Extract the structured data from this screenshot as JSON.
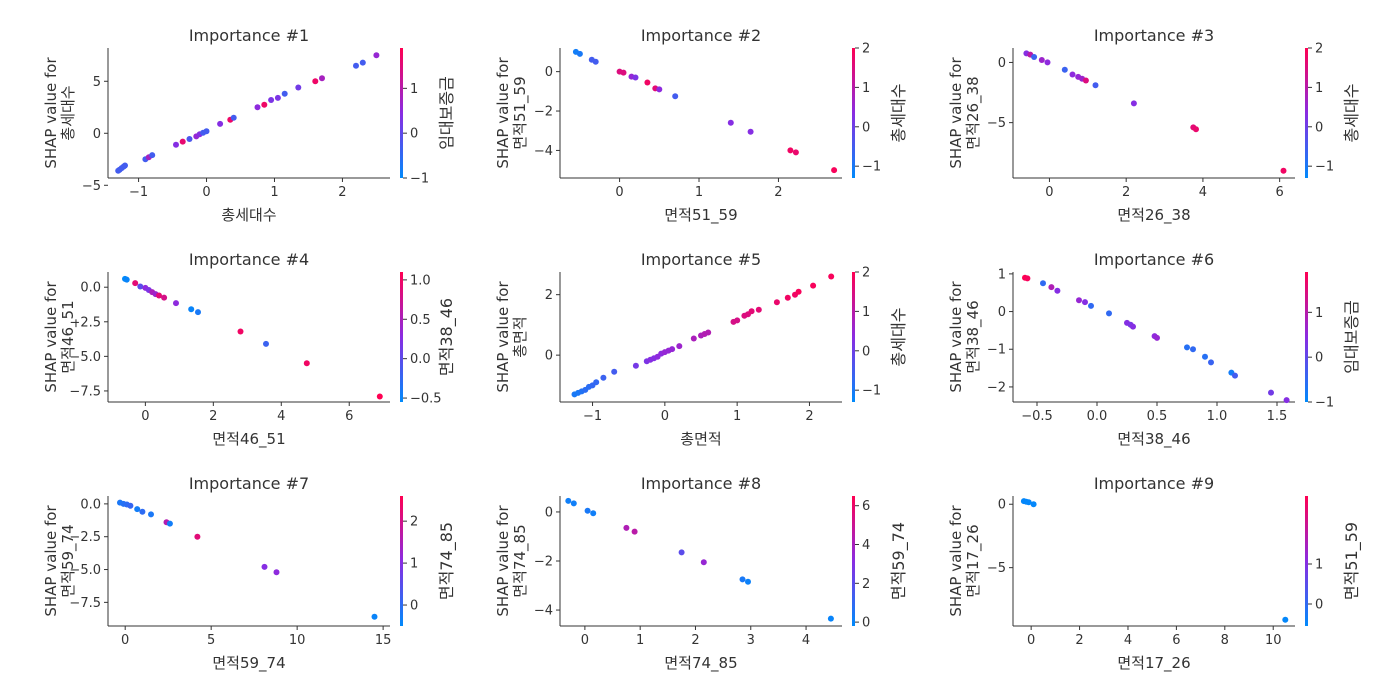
{
  "figure": {
    "colorscale": [
      "#008afb",
      "#8a2be2",
      "#ff0052"
    ]
  },
  "chart_data": [
    {
      "type": "scatter",
      "title": "Importance #1",
      "xlabel": "총세대수",
      "ylabel": [
        "SHAP value for",
        "총세대수"
      ],
      "xlim": [
        -1.45,
        2.7
      ],
      "ylim": [
        -4.3,
        8.2
      ],
      "xticks": [
        -1,
        0,
        1,
        2
      ],
      "yticks": [
        -5,
        0,
        5
      ],
      "colorbar": {
        "label": "임대보증금",
        "min": -1,
        "max": 1.9,
        "ticks": [
          -1,
          0,
          1
        ]
      },
      "points": [
        [
          -1.3,
          -3.6,
          -0.3
        ],
        [
          -1.28,
          -3.5,
          -0.3
        ],
        [
          -1.25,
          -3.35,
          -0.3
        ],
        [
          -1.22,
          -3.2,
          -0.3
        ],
        [
          -1.2,
          -3.1,
          -0.3
        ],
        [
          -0.9,
          -2.5,
          -0.3
        ],
        [
          -0.85,
          -2.3,
          0.8
        ],
        [
          -0.8,
          -2.1,
          -0.3
        ],
        [
          -0.45,
          -1.1,
          0.4
        ],
        [
          -0.35,
          -0.8,
          1.6
        ],
        [
          -0.25,
          -0.55,
          -0.2
        ],
        [
          -0.15,
          -0.3,
          0.6
        ],
        [
          -0.1,
          -0.1,
          0.4
        ],
        [
          -0.05,
          0.05,
          -0.3
        ],
        [
          0.0,
          0.2,
          -0.3
        ],
        [
          0.2,
          0.9,
          0.4
        ],
        [
          0.35,
          1.3,
          1.7
        ],
        [
          0.4,
          1.5,
          -0.3
        ],
        [
          0.75,
          2.5,
          0.5
        ],
        [
          0.85,
          2.75,
          1.7
        ],
        [
          0.95,
          3.2,
          0.3
        ],
        [
          1.05,
          3.4,
          0.3
        ],
        [
          1.15,
          3.8,
          -0.3
        ],
        [
          1.35,
          4.4,
          0.2
        ],
        [
          1.6,
          5.0,
          1.7
        ],
        [
          1.7,
          5.3,
          0.8
        ],
        [
          2.2,
          6.5,
          -0.3
        ],
        [
          2.3,
          6.8,
          -0.3
        ],
        [
          2.5,
          7.5,
          0.6
        ]
      ]
    },
    {
      "type": "scatter",
      "title": "Importance #2",
      "xlabel": "면적51_59",
      "ylabel": [
        "SHAP value for",
        "면적51_59"
      ],
      "xlim": [
        -0.75,
        2.8
      ],
      "ylim": [
        -5.4,
        1.2
      ],
      "xticks": [
        0,
        1,
        2
      ],
      "yticks": [
        -4,
        -2,
        0
      ],
      "colorbar": {
        "label": "총세대수",
        "min": -1.3,
        "max": 2,
        "ticks": [
          -1,
          0,
          1,
          2
        ]
      },
      "points": [
        [
          -0.55,
          1.0,
          -1.1
        ],
        [
          -0.5,
          0.9,
          -1.0
        ],
        [
          -0.35,
          0.6,
          -0.5
        ],
        [
          -0.3,
          0.5,
          -0.5
        ],
        [
          0.0,
          0.0,
          1.5
        ],
        [
          0.05,
          -0.05,
          1.5
        ],
        [
          0.15,
          -0.25,
          0.5
        ],
        [
          0.2,
          -0.3,
          0.2
        ],
        [
          0.35,
          -0.55,
          1.8
        ],
        [
          0.45,
          -0.85,
          1.6
        ],
        [
          0.5,
          -0.9,
          0.4
        ],
        [
          0.7,
          -1.25,
          -0.5
        ],
        [
          1.4,
          -2.6,
          0.3
        ],
        [
          1.65,
          -3.05,
          0.3
        ],
        [
          2.15,
          -4.0,
          1.8
        ],
        [
          2.22,
          -4.1,
          1.7
        ],
        [
          2.7,
          -5.0,
          1.9
        ]
      ]
    },
    {
      "type": "scatter",
      "title": "Importance #3",
      "xlabel": "면적26_38",
      "ylabel": [
        "SHAP value for",
        "면적26_38"
      ],
      "xlim": [
        -0.95,
        6.4
      ],
      "ylim": [
        -9.6,
        1.2
      ],
      "xticks": [
        0,
        2,
        4,
        6
      ],
      "yticks": [
        -5,
        0
      ],
      "colorbar": {
        "label": "총세대수",
        "min": -1.3,
        "max": 2,
        "ticks": [
          -1,
          0,
          1,
          2
        ]
      },
      "points": [
        [
          -0.6,
          0.75,
          0.3
        ],
        [
          -0.5,
          0.65,
          1.0
        ],
        [
          -0.4,
          0.45,
          -0.6
        ],
        [
          -0.2,
          0.2,
          0.6
        ],
        [
          -0.05,
          0.0,
          0.4
        ],
        [
          0.4,
          -0.6,
          -0.6
        ],
        [
          0.6,
          -1.0,
          0.4
        ],
        [
          0.75,
          -1.2,
          0.5
        ],
        [
          0.85,
          -1.35,
          0.6
        ],
        [
          0.95,
          -1.5,
          1.5
        ],
        [
          1.2,
          -1.9,
          -0.5
        ],
        [
          2.2,
          -3.4,
          0.3
        ],
        [
          3.75,
          -5.4,
          1.6
        ],
        [
          3.82,
          -5.55,
          1.7
        ],
        [
          6.1,
          -9.0,
          1.8
        ]
      ]
    },
    {
      "type": "scatter",
      "title": "Importance #4",
      "xlabel": "면적46_51",
      "ylabel": [
        "SHAP value for",
        "면적46_51"
      ],
      "xlim": [
        -1.1,
        7.2
      ],
      "ylim": [
        -8.3,
        1.1
      ],
      "xticks": [
        0,
        2,
        4,
        6
      ],
      "yticks": [
        -7.5,
        -5.0,
        -2.5,
        0.0
      ],
      "ytick_labels": [
        "−7.5",
        "−5.0",
        "−2.5",
        "0.0"
      ],
      "colorbar": {
        "label": "면적38_46",
        "min": -0.55,
        "max": 1.1,
        "ticks": [
          -0.5,
          0.0,
          0.5,
          1.0
        ],
        "tick_labels": [
          "−0.5",
          "0.0",
          "0.5",
          "1.0"
        ]
      },
      "points": [
        [
          -0.6,
          0.6,
          -0.55
        ],
        [
          -0.55,
          0.55,
          -0.5
        ],
        [
          -0.3,
          0.3,
          0.9
        ],
        [
          -0.15,
          0.05,
          0.0
        ],
        [
          0.0,
          -0.05,
          0.3
        ],
        [
          0.1,
          -0.2,
          0.2
        ],
        [
          0.2,
          -0.35,
          0.5
        ],
        [
          0.3,
          -0.5,
          0.4
        ],
        [
          0.4,
          -0.6,
          0.9
        ],
        [
          0.55,
          -0.75,
          0.8
        ],
        [
          0.9,
          -1.15,
          0.3
        ],
        [
          1.35,
          -1.6,
          -0.5
        ],
        [
          1.55,
          -1.8,
          -0.4
        ],
        [
          2.8,
          -3.2,
          1.0
        ],
        [
          3.55,
          -4.1,
          -0.2
        ],
        [
          4.75,
          -5.5,
          1.0
        ],
        [
          6.9,
          -7.9,
          1.1
        ]
      ]
    },
    {
      "type": "scatter",
      "title": "Importance #5",
      "xlabel": "총면적",
      "ylabel": [
        "SHAP value for",
        "총면적"
      ],
      "xlim": [
        -1.45,
        2.45
      ],
      "ylim": [
        -1.55,
        2.75
      ],
      "xticks": [
        -1,
        0,
        1,
        2
      ],
      "yticks": [
        0,
        2
      ],
      "colorbar": {
        "label": "총세대수",
        "min": -1.3,
        "max": 2,
        "ticks": [
          -1,
          0,
          1,
          2
        ]
      },
      "points": [
        [
          -1.25,
          -1.3,
          -1.0
        ],
        [
          -1.2,
          -1.25,
          -1.0
        ],
        [
          -1.15,
          -1.2,
          -0.9
        ],
        [
          -1.1,
          -1.15,
          -0.8
        ],
        [
          -1.05,
          -1.05,
          -0.8
        ],
        [
          -1.0,
          -1.0,
          -0.7
        ],
        [
          -0.95,
          -0.9,
          -0.7
        ],
        [
          -0.85,
          -0.75,
          -0.6
        ],
        [
          -0.7,
          -0.55,
          -0.5
        ],
        [
          -0.4,
          -0.35,
          0.1
        ],
        [
          -0.25,
          -0.2,
          0.2
        ],
        [
          -0.2,
          -0.15,
          0.3
        ],
        [
          -0.15,
          -0.1,
          0.3
        ],
        [
          -0.1,
          -0.05,
          0.4
        ],
        [
          -0.05,
          0.05,
          0.4
        ],
        [
          0.0,
          0.1,
          0.5
        ],
        [
          0.05,
          0.15,
          0.5
        ],
        [
          0.1,
          0.2,
          0.5
        ],
        [
          0.2,
          0.3,
          0.6
        ],
        [
          0.4,
          0.55,
          0.8
        ],
        [
          0.5,
          0.65,
          0.8
        ],
        [
          0.55,
          0.7,
          0.9
        ],
        [
          0.6,
          0.75,
          0.9
        ],
        [
          0.95,
          1.1,
          1.4
        ],
        [
          1.0,
          1.15,
          1.4
        ],
        [
          1.1,
          1.3,
          1.5
        ],
        [
          1.15,
          1.35,
          1.5
        ],
        [
          1.2,
          1.45,
          1.6
        ],
        [
          1.3,
          1.5,
          1.6
        ],
        [
          1.55,
          1.75,
          1.7
        ],
        [
          1.7,
          1.9,
          1.8
        ],
        [
          1.8,
          2.0,
          1.8
        ],
        [
          1.85,
          2.1,
          1.9
        ],
        [
          2.05,
          2.3,
          1.9
        ],
        [
          2.3,
          2.6,
          1.9
        ]
      ]
    },
    {
      "type": "scatter",
      "title": "Importance #6",
      "xlabel": "면적38_46",
      "ylabel": [
        "SHAP value for",
        "면적38_46"
      ],
      "xlim": [
        -0.7,
        1.65
      ],
      "ylim": [
        -2.4,
        1.05
      ],
      "xticks": [
        -0.5,
        0.0,
        0.5,
        1.0,
        1.5
      ],
      "yticks": [
        -2,
        -1,
        0,
        1
      ],
      "xtick_labels": [
        "−0.5",
        "0.0",
        "0.5",
        "1.0",
        "1.5"
      ],
      "colorbar": {
        "label": "임대보증금",
        "min": -1,
        "max": 1.9,
        "ticks": [
          -1,
          0,
          1
        ]
      },
      "points": [
        [
          -0.6,
          0.9,
          1.9
        ],
        [
          -0.58,
          0.88,
          1.8
        ],
        [
          -0.45,
          0.75,
          -0.5
        ],
        [
          -0.38,
          0.65,
          0.9
        ],
        [
          -0.33,
          0.55,
          0.4
        ],
        [
          -0.15,
          0.3,
          0.6
        ],
        [
          -0.1,
          0.25,
          0.4
        ],
        [
          -0.05,
          0.15,
          -0.5
        ],
        [
          0.1,
          -0.05,
          -0.5
        ],
        [
          0.25,
          -0.3,
          0.4
        ],
        [
          0.28,
          -0.35,
          0.3
        ],
        [
          0.3,
          -0.4,
          0.4
        ],
        [
          0.48,
          -0.65,
          0.5
        ],
        [
          0.5,
          -0.7,
          0.6
        ],
        [
          0.75,
          -0.95,
          -0.6
        ],
        [
          0.8,
          -1.0,
          -0.5
        ],
        [
          0.9,
          -1.2,
          -0.6
        ],
        [
          0.95,
          -1.35,
          -0.4
        ],
        [
          1.12,
          -1.62,
          -0.8
        ],
        [
          1.15,
          -1.7,
          -0.3
        ],
        [
          1.45,
          -2.15,
          0.2
        ],
        [
          1.58,
          -2.35,
          0.4
        ]
      ]
    },
    {
      "type": "scatter",
      "title": "Importance #7",
      "xlabel": "면적59_74",
      "ylabel": [
        "SHAP value for",
        "면적59_74"
      ],
      "xlim": [
        -1.0,
        15.4
      ],
      "ylim": [
        -9.3,
        0.6
      ],
      "xticks": [
        0,
        5,
        10,
        15
      ],
      "yticks": [
        -7.5,
        -5.0,
        -2.5,
        0.0
      ],
      "ytick_labels": [
        "−7.5",
        "−5.0",
        "−2.5",
        "0.0"
      ],
      "colorbar": {
        "label": "면적74_85",
        "min": -0.5,
        "max": 2.6,
        "ticks": [
          0,
          1,
          2
        ]
      },
      "points": [
        [
          -0.3,
          0.1,
          -0.2
        ],
        [
          -0.1,
          0.0,
          -0.1
        ],
        [
          0.1,
          -0.05,
          0.0
        ],
        [
          0.3,
          -0.15,
          0.1
        ],
        [
          0.7,
          -0.4,
          -0.3
        ],
        [
          1.0,
          -0.6,
          0.0
        ],
        [
          1.5,
          -0.8,
          -0.2
        ],
        [
          2.4,
          -1.4,
          1.6
        ],
        [
          2.6,
          -1.5,
          -0.3
        ],
        [
          4.2,
          -2.5,
          2.2
        ],
        [
          8.1,
          -4.8,
          1.0
        ],
        [
          8.8,
          -5.2,
          1.1
        ],
        [
          14.5,
          -8.6,
          -0.4
        ]
      ]
    },
    {
      "type": "scatter",
      "title": "Importance #8",
      "xlabel": "면적74_85",
      "ylabel": [
        "SHAP value for",
        "면적74_85"
      ],
      "xlim": [
        -0.45,
        4.65
      ],
      "ylim": [
        -4.65,
        0.65
      ],
      "xticks": [
        0,
        1,
        2,
        3,
        4
      ],
      "yticks": [
        -4,
        -2,
        0
      ],
      "colorbar": {
        "label": "면적59_74",
        "min": -0.2,
        "max": 6.5,
        "ticks": [
          0,
          2,
          4,
          6
        ]
      },
      "points": [
        [
          -0.3,
          0.45,
          0.2
        ],
        [
          -0.2,
          0.35,
          0.2
        ],
        [
          0.05,
          0.05,
          0.4
        ],
        [
          0.15,
          -0.05,
          0.2
        ],
        [
          0.75,
          -0.65,
          4.2
        ],
        [
          0.9,
          -0.8,
          4.5
        ],
        [
          1.75,
          -1.65,
          2.0
        ],
        [
          2.15,
          -2.05,
          3.5
        ],
        [
          2.85,
          -2.75,
          0.4
        ],
        [
          2.95,
          -2.85,
          0.1
        ],
        [
          4.45,
          -4.35,
          0.0
        ]
      ]
    },
    {
      "type": "scatter",
      "title": "Importance #9",
      "xlabel": "면적17_26",
      "ylabel": [
        "SHAP value for",
        "면적17_26"
      ],
      "xlim": [
        -0.75,
        10.9
      ],
      "ylim": [
        -9.6,
        0.65
      ],
      "xticks": [
        0,
        2,
        4,
        6,
        8,
        10
      ],
      "yticks": [
        -5,
        0
      ],
      "colorbar": {
        "label": "면적51_59",
        "min": -0.55,
        "max": 2.7,
        "ticks": [
          0,
          1
        ]
      },
      "points": [
        [
          -0.3,
          0.25,
          -0.5
        ],
        [
          -0.2,
          0.2,
          -0.5
        ],
        [
          -0.1,
          0.15,
          -0.5
        ],
        [
          0.1,
          0.0,
          -0.5
        ],
        [
          10.5,
          -9.1,
          -0.5
        ]
      ]
    }
  ]
}
